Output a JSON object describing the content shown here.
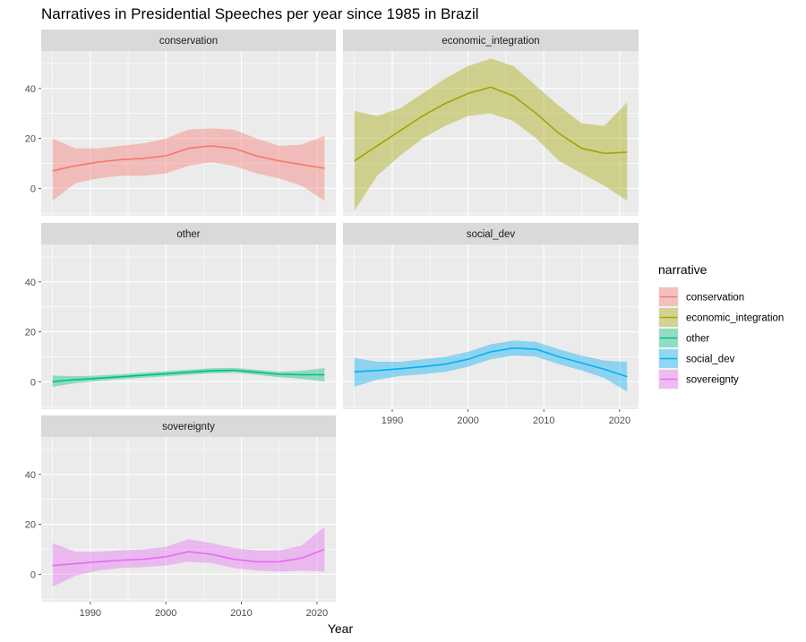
{
  "chart_data": {
    "type": "line",
    "title": "Narratives in Presidential Speeches per year since 1985 in Brazil",
    "xlabel": "Year",
    "ylabel": "",
    "xlim": [
      1983.5,
      2022.5
    ],
    "ylim": [
      -11,
      55
    ],
    "x_ticks": [
      1990,
      2000,
      2010,
      2020
    ],
    "y_ticks": [
      0,
      20,
      40
    ],
    "grid": true,
    "legend_title": "narrative",
    "legend_position": "right",
    "facets": [
      {
        "name": "conservation",
        "color": "#F8766D",
        "x": [
          1985,
          1988,
          1991,
          1994,
          1997,
          2000,
          2003,
          2006,
          2009,
          2012,
          2015,
          2018,
          2021
        ],
        "y": [
          7,
          9,
          10.5,
          11.5,
          12,
          13,
          16,
          17,
          16,
          13,
          11,
          9.5,
          8
        ],
        "lower": [
          -5,
          2,
          4,
          5,
          5,
          6,
          9,
          10.5,
          9,
          6,
          4,
          1,
          -5
        ],
        "upper": [
          20,
          16,
          16,
          17,
          18,
          20,
          23.5,
          24,
          23.5,
          20,
          17,
          17.5,
          21
        ]
      },
      {
        "name": "economic_integration",
        "color": "#A3A500",
        "x": [
          1985,
          1988,
          1991,
          1994,
          1997,
          2000,
          2003,
          2006,
          2009,
          2012,
          2015,
          2018,
          2021
        ],
        "y": [
          11,
          17,
          23,
          29,
          34,
          38,
          40.5,
          37,
          30,
          22,
          16,
          14,
          14.5
        ],
        "lower": [
          -9,
          5,
          13,
          20,
          25,
          29,
          30,
          27,
          20,
          11,
          6,
          1,
          -5
        ],
        "upper": [
          31,
          29,
          32,
          38,
          44,
          49,
          52,
          49,
          41,
          33,
          26,
          25,
          34.5
        ]
      },
      {
        "name": "other",
        "color": "#00BF7D",
        "x": [
          1985,
          1988,
          1991,
          1994,
          1997,
          2000,
          2003,
          2006,
          2009,
          2012,
          2015,
          2018,
          2021
        ],
        "y": [
          0,
          0.8,
          1.4,
          2,
          2.6,
          3.2,
          3.8,
          4.4,
          4.6,
          3.8,
          3,
          2.8,
          2.8
        ],
        "lower": [
          -2,
          -0.6,
          0.3,
          1,
          1.6,
          2.2,
          2.8,
          3.4,
          3.6,
          2.8,
          1.8,
          1.2,
          0
        ],
        "upper": [
          2.5,
          2.2,
          2.5,
          3,
          3.6,
          4.2,
          4.8,
          5.4,
          5.6,
          4.8,
          4,
          4.4,
          5.5
        ]
      },
      {
        "name": "social_dev",
        "color": "#00B0F6",
        "x": [
          1985,
          1988,
          1991,
          1994,
          1997,
          2000,
          2003,
          2006,
          2009,
          2012,
          2015,
          2018,
          2021
        ],
        "y": [
          4,
          4.5,
          5.2,
          6,
          7,
          9,
          12,
          13.5,
          13,
          10,
          7.5,
          5,
          2
        ],
        "lower": [
          -2,
          0.8,
          2.3,
          3,
          4,
          6,
          9,
          10.5,
          10,
          7,
          4.5,
          1.5,
          -4
        ],
        "upper": [
          9.5,
          8,
          8,
          9,
          10,
          12,
          15,
          16.5,
          16,
          13,
          10.5,
          8.5,
          8
        ]
      },
      {
        "name": "sovereignty",
        "color": "#E76BF3",
        "x": [
          1985,
          1988,
          1991,
          1994,
          1997,
          2000,
          2003,
          2006,
          2009,
          2012,
          2015,
          2018,
          2021
        ],
        "y": [
          3.5,
          4.2,
          5,
          5.6,
          6,
          7,
          9,
          8,
          6,
          5,
          5,
          6.5,
          10
        ],
        "lower": [
          -5,
          -0.6,
          1.5,
          2.5,
          2.8,
          3.5,
          5,
          4.5,
          2.5,
          1.5,
          1,
          1.5,
          1
        ],
        "upper": [
          12.5,
          9,
          9,
          9.5,
          10,
          11,
          14,
          12.5,
          10.5,
          9.5,
          9.5,
          11.5,
          19
        ]
      }
    ]
  }
}
